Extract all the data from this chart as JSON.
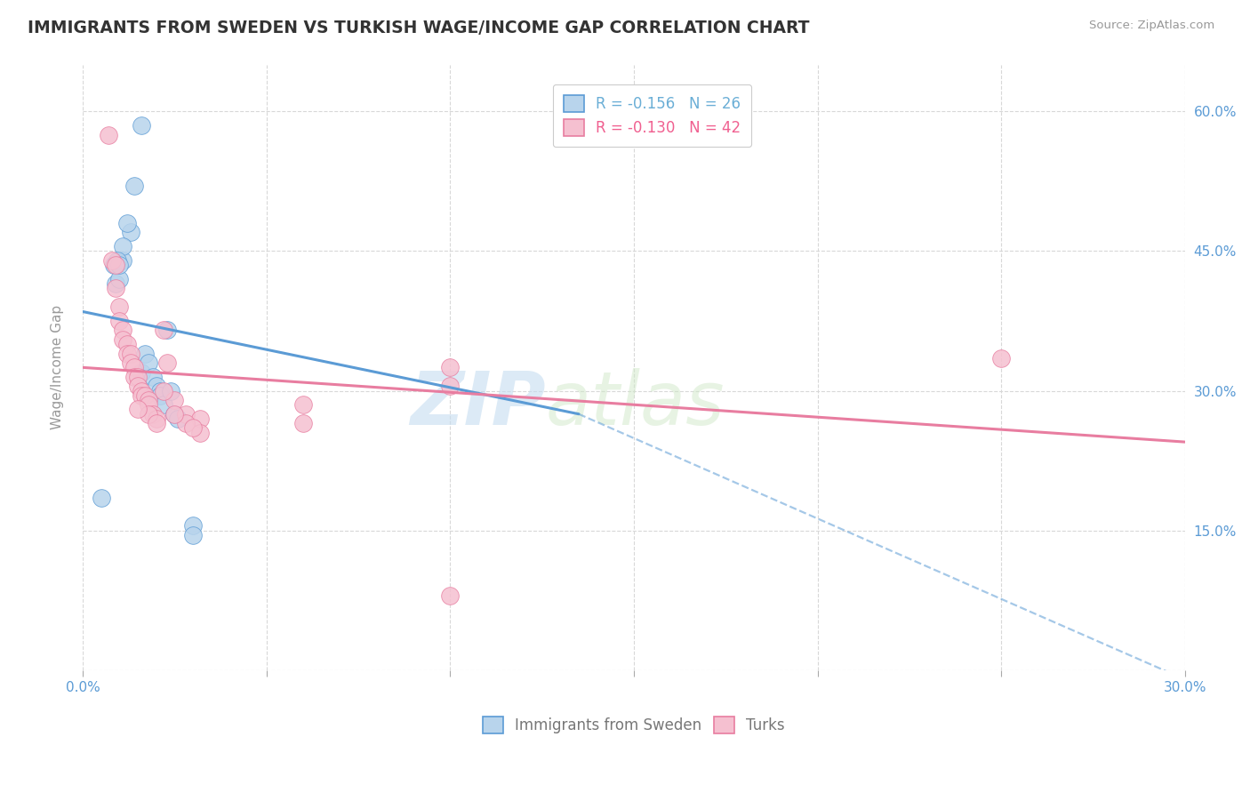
{
  "title": "IMMIGRANTS FROM SWEDEN VS TURKISH WAGE/INCOME GAP CORRELATION CHART",
  "source": "Source: ZipAtlas.com",
  "xlabel": "",
  "ylabel": "Wage/Income Gap",
  "xlim": [
    0.0,
    0.3
  ],
  "ylim": [
    0.0,
    0.65
  ],
  "xticks": [
    0.0,
    0.05,
    0.1,
    0.15,
    0.2,
    0.25,
    0.3
  ],
  "xticklabels": [
    "0.0%",
    "",
    "",
    "",
    "",
    "",
    "30.0%"
  ],
  "yticks_left": [
    0.0,
    0.15,
    0.3,
    0.45,
    0.6
  ],
  "yticks_right": [
    0.0,
    0.15,
    0.3,
    0.45,
    0.6
  ],
  "ytick_labels_right": [
    "",
    "15.0%",
    "30.0%",
    "45.0%",
    "60.0%"
  ],
  "legend_entries": [
    {
      "label": "R = -0.156   N = 26",
      "color": "#6aaed6"
    },
    {
      "label": "R = -0.130   N = 42",
      "color": "#f06090"
    }
  ],
  "legend_labels_bottom": [
    "Immigrants from Sweden",
    "Turks"
  ],
  "watermark_part1": "ZIP",
  "watermark_part2": "atlas",
  "background_color": "#ffffff",
  "grid_color": "#d8d8d8",
  "sweden_points": [
    [
      0.0085,
      0.435
    ],
    [
      0.009,
      0.415
    ],
    [
      0.01,
      0.42
    ],
    [
      0.011,
      0.44
    ],
    [
      0.013,
      0.47
    ],
    [
      0.014,
      0.52
    ],
    [
      0.016,
      0.585
    ],
    [
      0.016,
      0.32
    ],
    [
      0.017,
      0.34
    ],
    [
      0.018,
      0.33
    ],
    [
      0.019,
      0.315
    ],
    [
      0.02,
      0.305
    ],
    [
      0.021,
      0.3
    ],
    [
      0.021,
      0.295
    ],
    [
      0.022,
      0.285
    ],
    [
      0.023,
      0.365
    ],
    [
      0.024,
      0.3
    ],
    [
      0.025,
      0.275
    ],
    [
      0.026,
      0.27
    ],
    [
      0.011,
      0.455
    ],
    [
      0.012,
      0.48
    ],
    [
      0.0095,
      0.44
    ],
    [
      0.01,
      0.435
    ],
    [
      0.03,
      0.155
    ],
    [
      0.03,
      0.145
    ],
    [
      0.005,
      0.185
    ]
  ],
  "turks_points": [
    [
      0.007,
      0.575
    ],
    [
      0.008,
      0.44
    ],
    [
      0.009,
      0.435
    ],
    [
      0.009,
      0.41
    ],
    [
      0.01,
      0.39
    ],
    [
      0.01,
      0.375
    ],
    [
      0.011,
      0.365
    ],
    [
      0.011,
      0.355
    ],
    [
      0.012,
      0.35
    ],
    [
      0.012,
      0.34
    ],
    [
      0.013,
      0.34
    ],
    [
      0.013,
      0.33
    ],
    [
      0.014,
      0.325
    ],
    [
      0.014,
      0.315
    ],
    [
      0.015,
      0.315
    ],
    [
      0.015,
      0.305
    ],
    [
      0.016,
      0.3
    ],
    [
      0.016,
      0.295
    ],
    [
      0.017,
      0.295
    ],
    [
      0.018,
      0.29
    ],
    [
      0.018,
      0.285
    ],
    [
      0.019,
      0.275
    ],
    [
      0.02,
      0.27
    ],
    [
      0.022,
      0.365
    ],
    [
      0.023,
      0.33
    ],
    [
      0.025,
      0.29
    ],
    [
      0.028,
      0.275
    ],
    [
      0.032,
      0.27
    ],
    [
      0.018,
      0.275
    ],
    [
      0.1,
      0.325
    ],
    [
      0.25,
      0.335
    ],
    [
      0.1,
      0.305
    ],
    [
      0.028,
      0.265
    ],
    [
      0.032,
      0.255
    ],
    [
      0.022,
      0.3
    ],
    [
      0.06,
      0.285
    ],
    [
      0.06,
      0.265
    ],
    [
      0.1,
      0.08
    ],
    [
      0.02,
      0.265
    ],
    [
      0.015,
      0.28
    ],
    [
      0.025,
      0.275
    ],
    [
      0.03,
      0.26
    ]
  ],
  "sweden_line": {
    "x0": 0.0,
    "y0": 0.385,
    "x1": 0.135,
    "y1": 0.275
  },
  "sweden_dash_line": {
    "x0": 0.135,
    "y0": 0.275,
    "x1": 0.3,
    "y1": -0.01
  },
  "turks_line": {
    "x0": 0.0,
    "y0": 0.325,
    "x1": 0.3,
    "y1": 0.245
  },
  "sweden_color": "#5b9bd5",
  "turks_color": "#e87da0",
  "sweden_marker_color": "#b8d4ec",
  "turks_marker_color": "#f5c0d0",
  "title_color": "#333333",
  "axis_label_color": "#5b9bd5",
  "right_tick_color": "#5b9bd5"
}
